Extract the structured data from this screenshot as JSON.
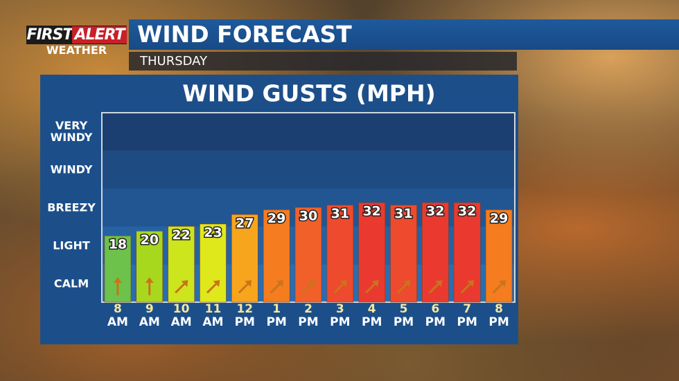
{
  "header": {
    "logo": "FIRST",
    "logo_accent": "ALERT",
    "logo_sub": "WEATHER",
    "title": "WIND FORECAST",
    "subtitle": "THURSDAY"
  },
  "chart_data": {
    "type": "bar",
    "title": "WIND GUSTS (MPH)",
    "categories": [
      "8",
      "9",
      "10",
      "11",
      "12",
      "1",
      "2",
      "3",
      "4",
      "5",
      "6",
      "7",
      "8"
    ],
    "periods": [
      "AM",
      "AM",
      "AM",
      "AM",
      "PM",
      "PM",
      "PM",
      "PM",
      "PM",
      "PM",
      "PM",
      "PM",
      "PM"
    ],
    "values": [
      18,
      20,
      22,
      23,
      27,
      29,
      30,
      31,
      32,
      31,
      32,
      32,
      29
    ],
    "colors": [
      "#6cc24a",
      "#a8d81e",
      "#cde51c",
      "#dfe81a",
      "#f7a51d",
      "#f57c1f",
      "#f2602a",
      "#ee4a2d",
      "#ea3a30",
      "#ee4a2d",
      "#ea3a30",
      "#ea3a30",
      "#f57c1f"
    ],
    "arrow_rotation": [
      0,
      0,
      45,
      45,
      45,
      45,
      45,
      45,
      45,
      45,
      45,
      45,
      45
    ],
    "y_bands": [
      "CALM",
      "LIGHT",
      "BREEZY",
      "WINDY",
      "VERY WINDY"
    ],
    "ylim": [
      -10,
      70
    ]
  }
}
